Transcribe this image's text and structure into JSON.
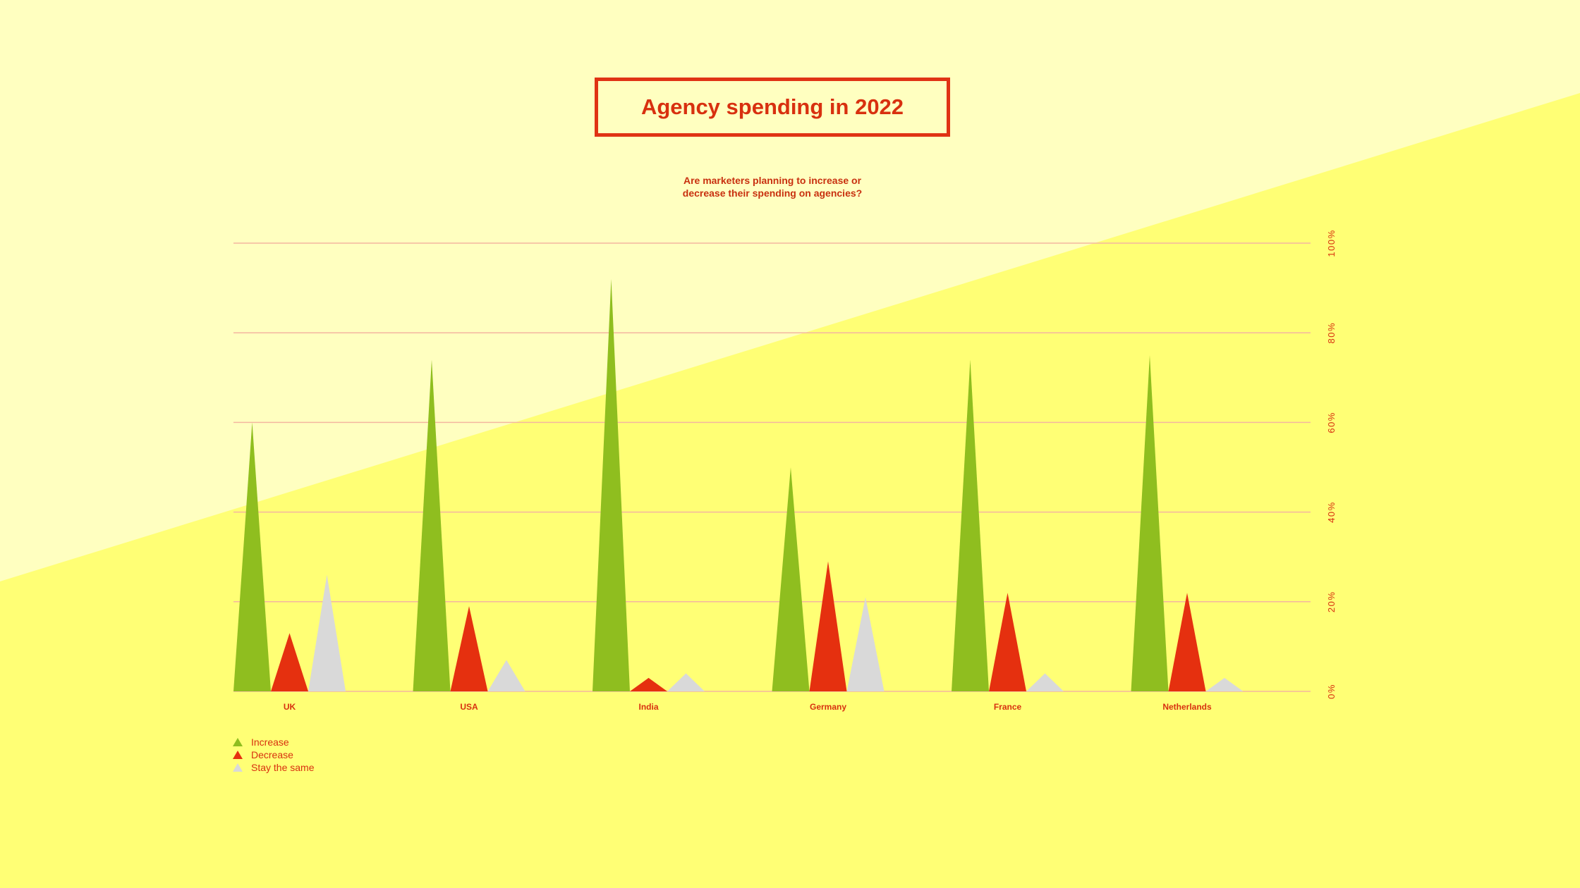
{
  "title": "Agency spending in 2022",
  "subtitle_line1": "Are marketers planning to increase or",
  "subtitle_line2": "decrease their spending on agencies?",
  "colors": {
    "background_light": "#ffffc0",
    "background": "#ffff75",
    "accent": "#d8300f",
    "increase": "#8fbe1f",
    "decrease": "#e5300f",
    "same": "#d9d9d9",
    "grid": "#f4b6a0"
  },
  "chart_data": {
    "type": "bar",
    "categories": [
      "UK",
      "USA",
      "India",
      "Germany",
      "France",
      "Netherlands"
    ],
    "series": [
      {
        "name": "Increase",
        "values": [
          60,
          74,
          92,
          50,
          74,
          75
        ]
      },
      {
        "name": "Decrease",
        "values": [
          13,
          19,
          3,
          29,
          22,
          22
        ]
      },
      {
        "name": "Stay the same",
        "values": [
          26,
          7,
          4,
          21,
          4,
          3
        ]
      }
    ],
    "ylim": [
      0,
      100
    ],
    "yticks": [
      "0%",
      "20%",
      "40%",
      "60%",
      "80%",
      "100%"
    ],
    "grid": true,
    "legend": "bottom-left"
  }
}
